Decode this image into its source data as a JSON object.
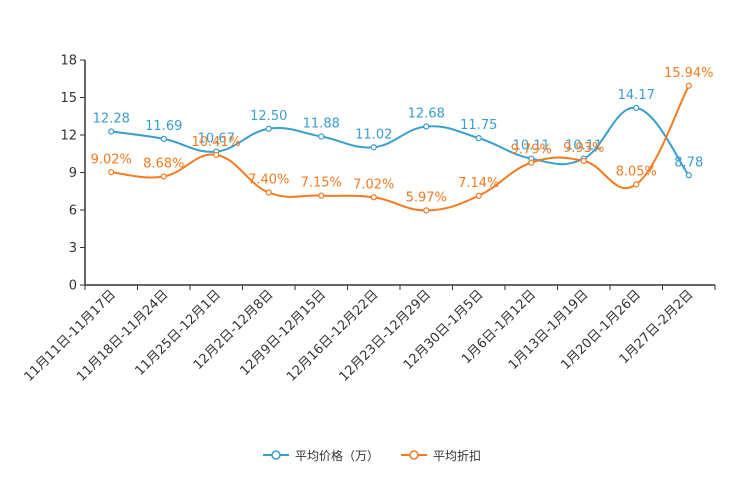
{
  "chart_data": {
    "type": "line",
    "title": "",
    "xlabel": "",
    "ylabel": "",
    "ylim": [
      0,
      18
    ],
    "yticks": [
      0,
      3,
      6,
      9,
      12,
      15,
      18
    ],
    "categories": [
      "11月11日-11月17日",
      "11月18日-11月24日",
      "11月25日-12月1日",
      "12月2日-12月8日",
      "12月9日-12月15日",
      "12月16日-12月22日",
      "12月23日-12月29日",
      "12月30日-1月5日",
      "1月6日-1月12日",
      "1月13日-1月19日",
      "1月20日-1月26日",
      "1月27日-2月2日"
    ],
    "series": [
      {
        "name": "平均价格（万）",
        "color": "#3a9ecf",
        "values": [
          12.28,
          11.69,
          10.67,
          12.5,
          11.88,
          11.02,
          12.68,
          11.75,
          10.11,
          10.11,
          14.17,
          8.78
        ],
        "labels": [
          "12.28",
          "11.69",
          "10.67",
          "12.50",
          "11.88",
          "11.02",
          "12.68",
          "11.75",
          "10.11",
          "10.11",
          "14.17",
          "8.78"
        ]
      },
      {
        "name": "平均折扣",
        "color": "#f47b20",
        "values": [
          9.02,
          8.68,
          10.41,
          7.4,
          7.15,
          7.02,
          5.97,
          7.14,
          9.79,
          9.93,
          8.05,
          15.94
        ],
        "labels": [
          "9.02%",
          "8.68%",
          "10.41%",
          "7.40%",
          "7.15%",
          "7.02%",
          "5.97%",
          "7.14%",
          "9.79%",
          "9.93%",
          "8.05%",
          "15.94%"
        ]
      }
    ],
    "legend_position": "bottom"
  }
}
